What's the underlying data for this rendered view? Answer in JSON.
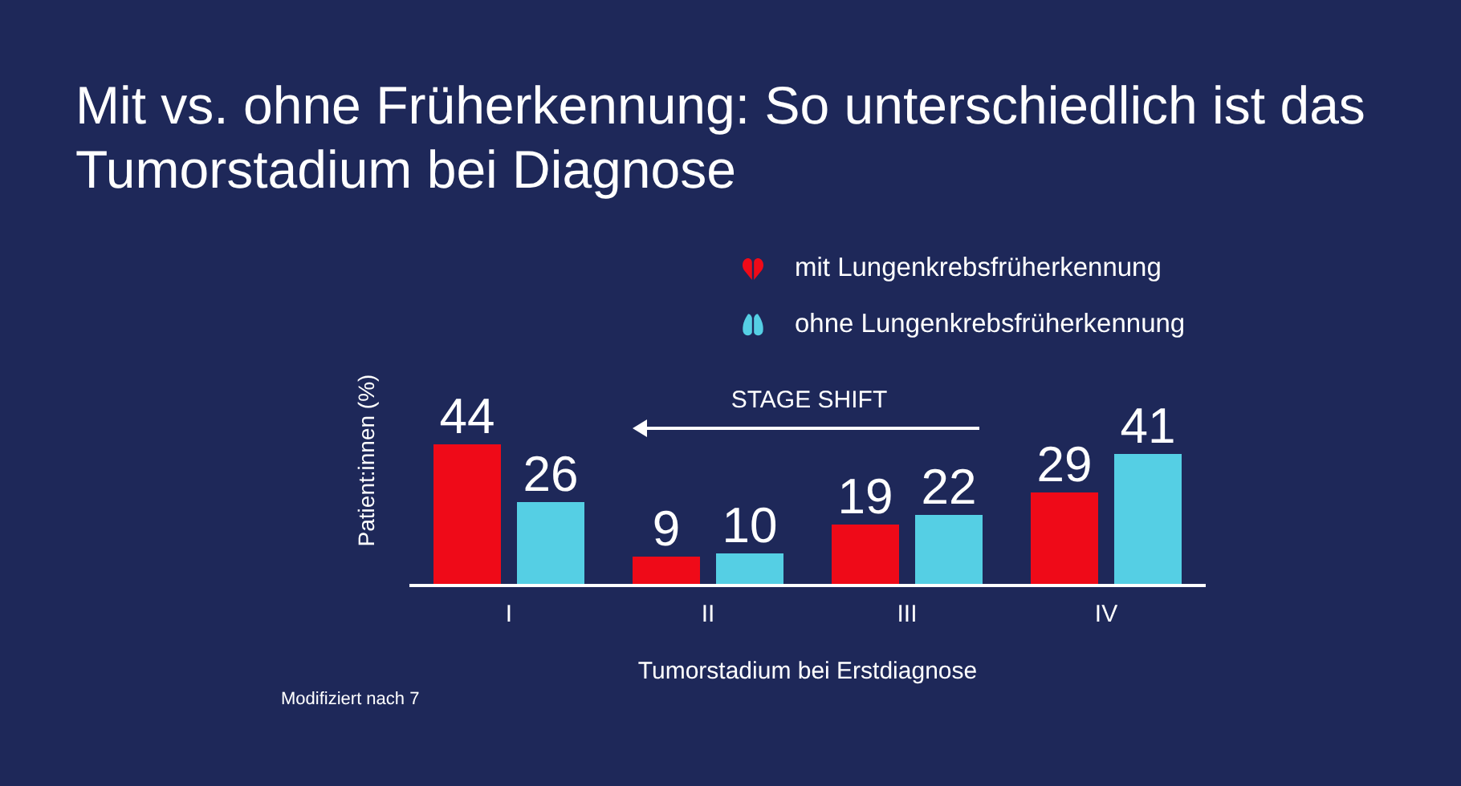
{
  "chart_data": {
    "type": "bar",
    "title": "Mit vs. ohne Früherkennung: So unterschiedlich ist das Tumorstadium bei Diagnose",
    "xlabel": "Tumorstadium bei Erstdiagnose",
    "ylabel": "Patient:innen (%)",
    "categories": [
      "I",
      "II",
      "III",
      "IV"
    ],
    "series": [
      {
        "name": "mit Lungenkrebsfrüherkennung",
        "color": "#ef0a18",
        "values": [
          44,
          9,
          19,
          29
        ]
      },
      {
        "name": "ohne Lungenkrebsfrüherkennung",
        "color": "#55cfe4",
        "values": [
          26,
          10,
          22,
          41
        ]
      }
    ],
    "data_labels": true,
    "legend": "top right",
    "tick_labels": "x",
    "annotations": [
      "STAGE SHIFT",
      "Modifiziert nach 7"
    ]
  }
}
